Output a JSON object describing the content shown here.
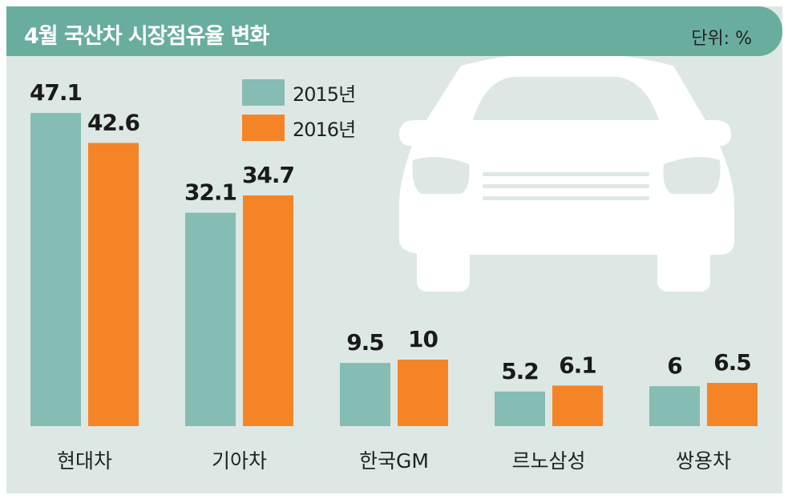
{
  "title": "4월 국산차 시장점유율 변화",
  "unit_label": "단위: %",
  "colors": {
    "header": "#69ad9f",
    "background": "#dde8e4",
    "series_2015": "#85bcb3",
    "series_2016": "#f58426"
  },
  "chart_data": {
    "type": "bar",
    "title": "4월 국산차 시장점유율 변화",
    "unit": "%",
    "legend_position": "top-center",
    "grid": false,
    "categories": [
      "현대차",
      "기아차",
      "한국GM",
      "르노삼성",
      "쌍용차"
    ],
    "series": [
      {
        "name": "2015년",
        "values": [
          47.1,
          32.1,
          9.5,
          5.2,
          6
        ],
        "labels": [
          "47.1",
          "32.1",
          "9.5",
          "5.2",
          "6"
        ]
      },
      {
        "name": "2016년",
        "values": [
          42.6,
          34.7,
          10,
          6.1,
          6.5
        ],
        "labels": [
          "42.6",
          "34.7",
          "10",
          "6.1",
          "6.5"
        ]
      }
    ]
  }
}
